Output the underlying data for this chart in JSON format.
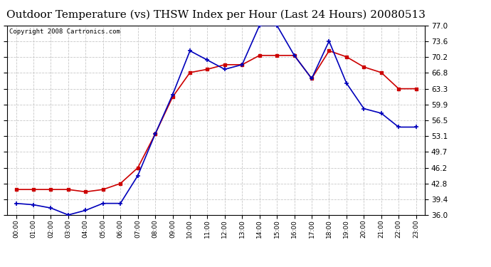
{
  "title": "Outdoor Temperature (vs) THSW Index per Hour (Last 24 Hours) 20080513",
  "copyright": "Copyright 2008 Cartronics.com",
  "hours": [
    "00:00",
    "01:00",
    "02:00",
    "03:00",
    "04:00",
    "05:00",
    "06:00",
    "07:00",
    "08:00",
    "09:00",
    "10:00",
    "11:00",
    "12:00",
    "13:00",
    "14:00",
    "15:00",
    "16:00",
    "17:00",
    "18:00",
    "19:00",
    "20:00",
    "21:00",
    "22:00",
    "23:00"
  ],
  "temp_red": [
    41.5,
    41.5,
    41.5,
    41.5,
    41.0,
    41.5,
    42.8,
    46.2,
    53.5,
    61.5,
    66.8,
    67.5,
    68.5,
    68.5,
    70.5,
    70.5,
    70.5,
    65.5,
    71.5,
    70.2,
    68.0,
    66.8,
    63.3,
    63.3
  ],
  "thsw_blue": [
    38.5,
    38.2,
    37.5,
    36.0,
    37.0,
    38.5,
    38.5,
    44.5,
    53.5,
    62.0,
    71.5,
    69.5,
    67.5,
    68.5,
    77.0,
    77.0,
    70.5,
    65.5,
    73.6,
    64.5,
    59.0,
    58.0,
    55.0,
    55.0
  ],
  "ymin": 36.0,
  "ymax": 77.0,
  "yticks": [
    36.0,
    39.4,
    42.8,
    46.2,
    49.7,
    53.1,
    56.5,
    59.9,
    63.3,
    66.8,
    70.2,
    73.6,
    77.0
  ],
  "bg_color": "#ffffff",
  "plot_bg": "#ffffff",
  "grid_color": "#c8c8c8",
  "red_color": "#cc0000",
  "blue_color": "#0000bb",
  "title_fontsize": 11,
  "copyright_fontsize": 6.5
}
